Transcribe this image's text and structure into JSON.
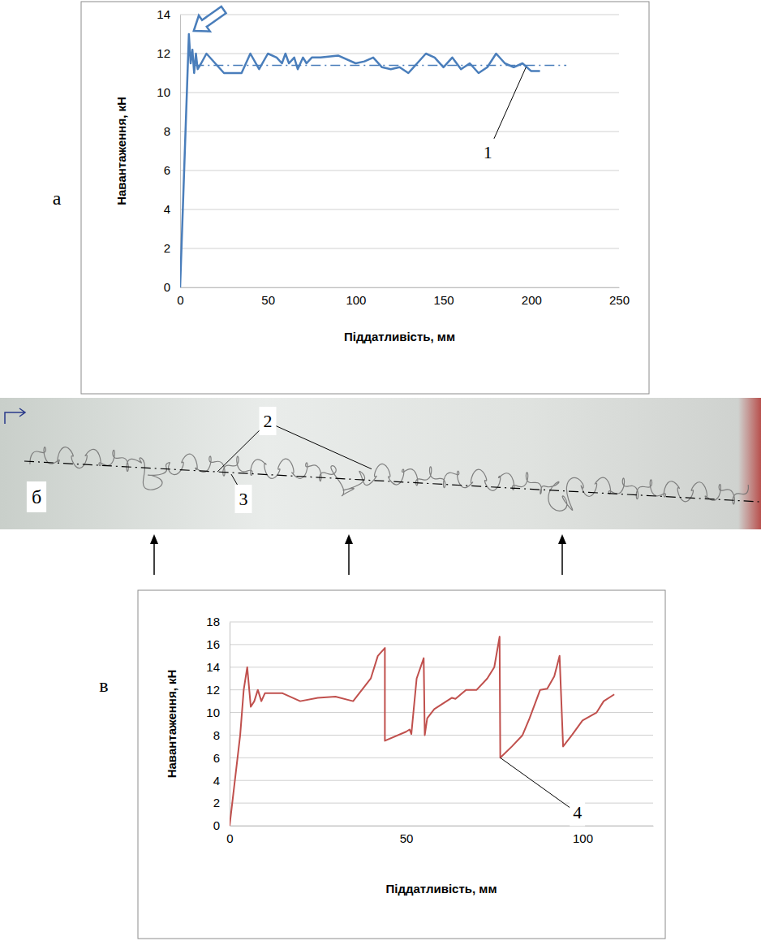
{
  "chart_data": [
    {
      "type": "line",
      "label": "а",
      "x_label": "Піддатливість, мм",
      "y_label": "Навантаження, кН",
      "xlim": [
        0,
        250
      ],
      "xticks": [
        0,
        50,
        100,
        150,
        200,
        250
      ],
      "ylim": [
        0,
        14
      ],
      "yticks": [
        0,
        2,
        4,
        6,
        8,
        10,
        12,
        14
      ],
      "grid": true,
      "color": "#4a7ebb",
      "series": [
        {
          "color": "#4a7ebb",
          "line_style": "solid",
          "x": [
            0,
            5,
            6,
            7,
            8,
            9,
            10,
            12,
            15,
            20,
            25,
            30,
            35,
            40,
            45,
            50,
            55,
            58,
            60,
            62,
            65,
            67,
            70,
            72,
            75,
            80,
            90,
            100,
            105,
            110,
            115,
            120,
            125,
            130,
            135,
            140,
            145,
            150,
            155,
            160,
            165,
            170,
            175,
            180,
            185,
            190,
            195,
            200,
            205
          ],
          "values": [
            0,
            13,
            11.5,
            12.2,
            11,
            12,
            11.2,
            11.5,
            12,
            11.5,
            11,
            11,
            11,
            12,
            11.2,
            12,
            11.8,
            11.5,
            12,
            11.5,
            11.8,
            11.2,
            11.8,
            11.5,
            11.8,
            11.8,
            11.9,
            11.5,
            11.6,
            11.8,
            11.3,
            11.2,
            11.3,
            11,
            11.5,
            12,
            11.8,
            11.3,
            11.8,
            11.2,
            11.5,
            11,
            11.3,
            12,
            11.5,
            11.3,
            11.5,
            11.1,
            11.1
          ]
        },
        {
          "color": "#4a7ebb",
          "line_style": "dashdot",
          "x": [
            8,
            220
          ],
          "values": [
            11.4,
            11.4
          ]
        }
      ],
      "annotations": [
        {
          "text": "1",
          "x": 197,
          "y": 11.3
        }
      ]
    },
    {
      "type": "line",
      "label": "в",
      "x_label": "Піддатливість, мм",
      "y_label": "Навантаження, кН",
      "xlim": [
        0,
        120
      ],
      "xticks": [
        0,
        50,
        100
      ],
      "ylim": [
        0,
        18
      ],
      "yticks": [
        0,
        2,
        4,
        6,
        8,
        10,
        12,
        14,
        16,
        18
      ],
      "grid": true,
      "color": "#c0504d",
      "series": [
        {
          "color": "#c0504d",
          "line_style": "solid",
          "x": [
            0,
            3,
            4,
            5,
            6,
            7,
            8,
            9,
            10,
            15,
            20,
            25,
            30,
            35,
            40,
            42,
            44,
            44,
            50,
            51,
            51.5,
            53,
            55,
            55.3,
            56,
            58,
            63,
            64,
            67,
            70,
            73,
            75,
            76.5,
            76.7,
            80,
            83,
            85,
            88,
            90,
            92,
            93.5,
            94.5,
            97,
            100,
            104,
            106,
            109
          ],
          "values": [
            0,
            8,
            12,
            14,
            10.5,
            11,
            12,
            11,
            11.7,
            11.7,
            11,
            11.3,
            11.4,
            11,
            13,
            15,
            15.7,
            7.5,
            8.3,
            8.5,
            8.1,
            13,
            14.8,
            8,
            9.5,
            10.3,
            11.3,
            11.2,
            12,
            12,
            13,
            14,
            16.7,
            6,
            7,
            8,
            9.5,
            12,
            12.1,
            13.2,
            15,
            7,
            8,
            9.3,
            10,
            11,
            11.6
          ]
        }
      ],
      "annotations": [
        {
          "text": "4",
          "x": 76.7,
          "y": 6
        }
      ]
    }
  ],
  "photo": {
    "label": "б",
    "callouts": [
      "2",
      "3"
    ]
  }
}
